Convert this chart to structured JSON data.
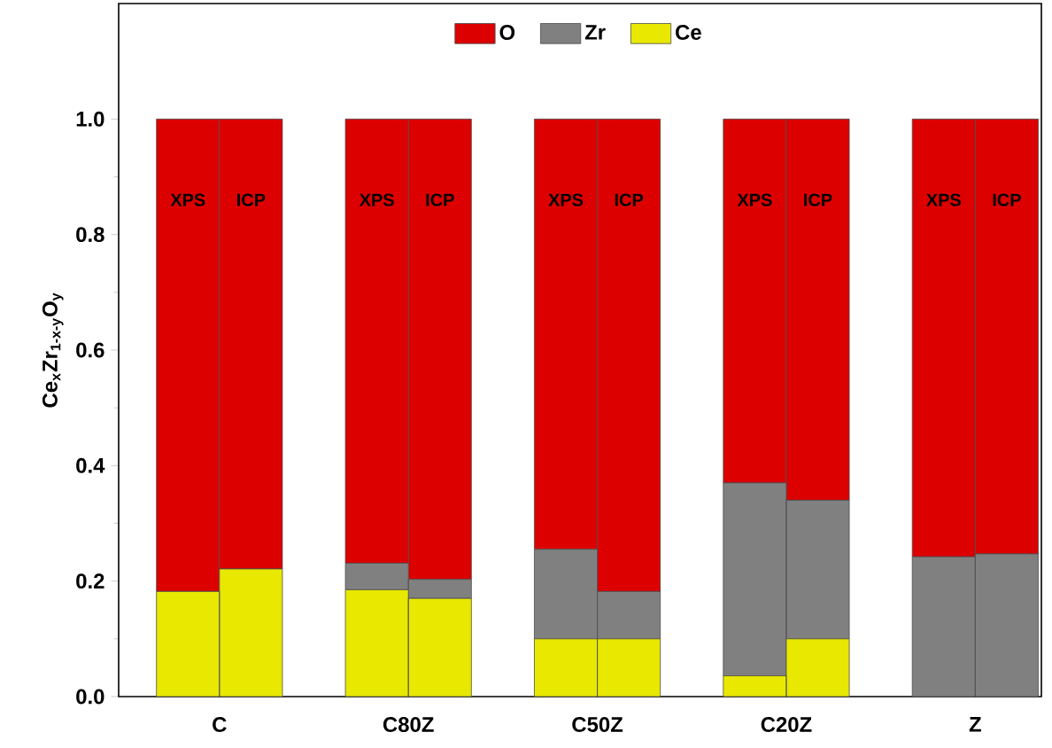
{
  "chart_data": {
    "type": "bar",
    "stacked": true,
    "ylabel": "Ce$_{x}$Zr$_{1-x-y}$O$_{y}$",
    "categories": [
      "XPS",
      "ICP",
      "XPS",
      "ICP",
      "XPS",
      "ICP",
      "XPS",
      "ICP",
      "XPS",
      "ICP"
    ],
    "ylim": [
      0,
      1.2
    ],
    "yticks": [
      {
        "value": 0,
        "label": "0.0"
      },
      {
        "value": 0.2,
        "label": "0.2"
      },
      {
        "value": 0.4,
        "label": "0.4"
      },
      {
        "value": 0.6,
        "label": "0.6"
      },
      {
        "value": 0.8,
        "label": "0.8"
      },
      {
        "value": 1.0,
        "label": "1.0"
      }
    ],
    "legend": "top",
    "series": [
      {
        "name": "Ce",
        "color": "#e8e800",
        "values": [
          0.182,
          0.221,
          0.185,
          0.17,
          0.1,
          0.1,
          0.036,
          0.1,
          0,
          0
        ]
      },
      {
        "name": "Zr",
        "color": "#808080",
        "values": [
          0,
          0,
          0.046,
          0.033,
          0.155,
          0.082,
          0.334,
          0.24,
          0.242,
          0.247
        ]
      },
      {
        "name": "O",
        "color": "#dd0000",
        "values": [
          0.818,
          0.779,
          0.769,
          0.797,
          0.745,
          0.818,
          0.63,
          0.66,
          0.758,
          0.753
        ]
      }
    ],
    "annotations": [
      "C",
      "C80Z",
      "C50Z",
      "C20Z",
      "Z"
    ]
  }
}
